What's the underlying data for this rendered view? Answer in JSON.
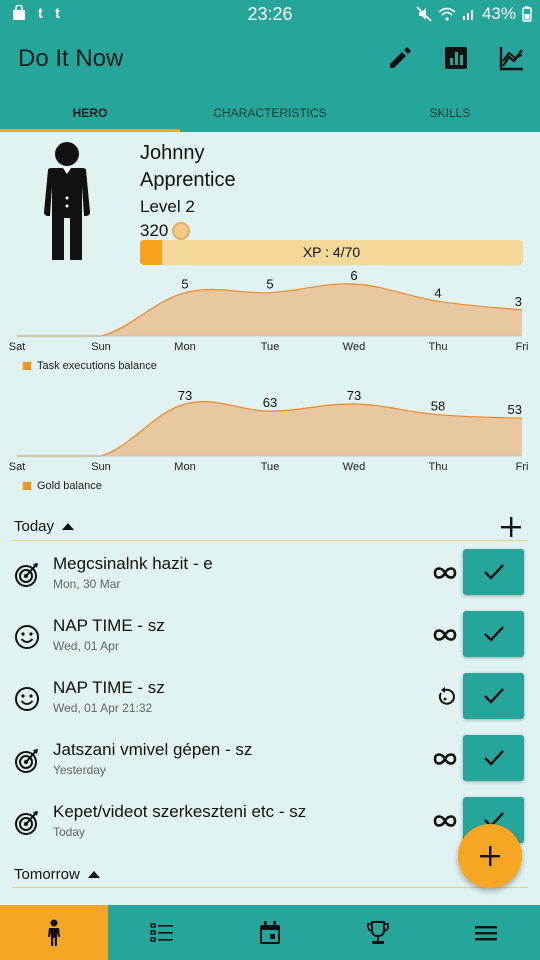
{
  "status_bar": {
    "time": "23:26",
    "battery": "43%",
    "notifications": [
      "bag",
      "t",
      "t"
    ]
  },
  "app": {
    "title": "Do It Now",
    "actions": [
      "edit-icon",
      "statistics-icon",
      "chart-line-icon"
    ]
  },
  "tabs": [
    {
      "label": "HERO",
      "active": true
    },
    {
      "label": "CHARACTERISTICS",
      "active": false
    },
    {
      "label": "SKILLS",
      "active": false
    }
  ],
  "hero": {
    "name": "Johnny",
    "class": "Apprentice",
    "level": "Level 2",
    "gold": "320",
    "xp_text": "XP : 4/70",
    "xp_progress": 0.057
  },
  "chart_data": [
    {
      "type": "area",
      "categories": [
        "Sat",
        "Sun",
        "Mon",
        "Tue",
        "Wed",
        "Thu",
        "Fri"
      ],
      "series": [
        {
          "name": "Task executions balance",
          "values": [
            0,
            0,
            5,
            5,
            6,
            4,
            3
          ],
          "labels": [
            "",
            "",
            "5",
            "5",
            "6",
            "4",
            "3"
          ]
        }
      ],
      "fill": "#e8c8a0",
      "stroke": "#f08a2a",
      "legend": "bottom-left"
    },
    {
      "type": "area",
      "categories": [
        "Sat",
        "Sun",
        "Mon",
        "Tue",
        "Wed",
        "Thu",
        "Fri"
      ],
      "series": [
        {
          "name": "Gold balance",
          "values": [
            0,
            0,
            73,
            63,
            73,
            58,
            53
          ],
          "labels": [
            "",
            "",
            "73",
            "63",
            "73",
            "58",
            "53"
          ]
        }
      ],
      "fill": "#e8c8a0",
      "stroke": "#f08a2a",
      "legend": "bottom-left"
    }
  ],
  "sections": {
    "today": {
      "title": "Today"
    },
    "tomorrow": {
      "title": "Tomorrow"
    }
  },
  "tasks": [
    {
      "title": "Megcsinalnk hazit - e",
      "date": "Mon, 30 Mar",
      "icon": "target-icon",
      "repeat": "infinity-icon"
    },
    {
      "title": "NAP TIME - sz",
      "date": "Wed, 01 Apr",
      "icon": "smiley-icon",
      "repeat": "infinity-icon"
    },
    {
      "title": "NAP TIME - sz",
      "date": "Wed, 01 Apr 21:32",
      "icon": "smiley-icon",
      "repeat": "replay-icon"
    },
    {
      "title": "Jatszani vmivel gépen - sz",
      "date": "Yesterday",
      "icon": "target-icon",
      "repeat": "infinity-icon"
    },
    {
      "title": "Kepet/videot szerkeszteni etc - sz",
      "date": "Today",
      "icon": "target-icon",
      "repeat": "infinity-icon"
    }
  ],
  "bottom_nav": [
    {
      "name": "hero",
      "icon": "person-icon",
      "active": true
    },
    {
      "name": "tasks",
      "icon": "list-icon",
      "active": false
    },
    {
      "name": "calendar",
      "icon": "calendar-icon",
      "active": false
    },
    {
      "name": "rewards",
      "icon": "trophy-icon",
      "active": false
    },
    {
      "name": "menu",
      "icon": "menu-icon",
      "active": false
    }
  ],
  "colors": {
    "primary": "#26a69a",
    "accent": "#f7a624",
    "background": "#e0f2f1"
  }
}
